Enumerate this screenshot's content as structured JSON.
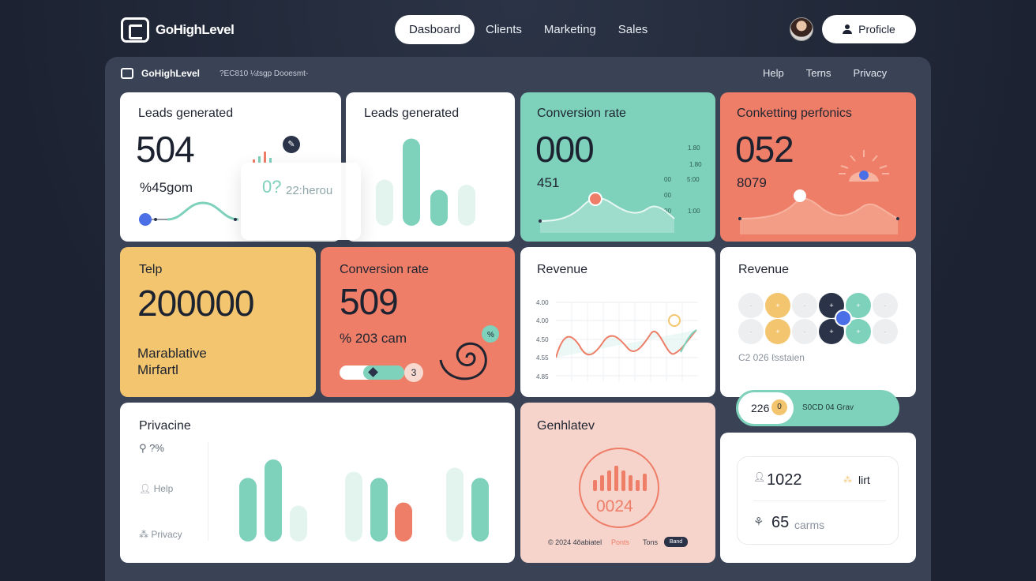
{
  "brand": {
    "name": "GoHighLevel"
  },
  "nav": {
    "items": [
      {
        "label": "Dasboard",
        "active": true
      },
      {
        "label": "Clients"
      },
      {
        "label": "Marketing"
      },
      {
        "label": "Sales"
      }
    ],
    "profile_label": "Proficle"
  },
  "subbar": {
    "brand": "GoHighLevel",
    "text": "?EC810 ¼tsgp Dooesmt-",
    "links": [
      "Help",
      "Terns",
      "Privacy"
    ]
  },
  "cards": {
    "leads1": {
      "title": "Leads generated",
      "value": "504",
      "sub": "%45gom"
    },
    "popup": {
      "text": "22:herou",
      "num": "0?"
    },
    "leads2": {
      "title": "Leads generated",
      "bar_levels": [
        0.45,
        0.85,
        0.35,
        0.4
      ]
    },
    "conv1": {
      "title": "Conversion rate",
      "value": "000",
      "sub": "451",
      "ticks": [
        "1.80",
        "1.80",
        "00",
        "00",
        "5:00",
        "00",
        "1:00"
      ]
    },
    "market": {
      "title": "Conketting perfonics",
      "value": "052",
      "sub": "8079"
    },
    "help": {
      "title": "Telp",
      "value": "200000",
      "line1": "Marablative",
      "line2": "Mirfartl"
    },
    "conv2": {
      "title": "Conversion rate",
      "value": "509",
      "sub": "% 203 cam",
      "slider_badge": "3"
    },
    "rev1": {
      "title": "Revenue",
      "ticks": [
        "4.00",
        "4.00",
        "4.50",
        "4.55",
        "4.85"
      ]
    },
    "rev2": {
      "title": "Revenue",
      "caption": "C2 026  ℓsstaien"
    },
    "pill": {
      "left": "226",
      "badge": "0",
      "right": "S0CD 04 Grav"
    },
    "stats": {
      "row1_num": "1022",
      "row1_label": "lirt",
      "row2_num": "65",
      "row2_label": "carms"
    },
    "privacy": {
      "title": "Privacine",
      "items": [
        "?%",
        "Help",
        "Privacy"
      ],
      "bar_levels": [
        0.62,
        0.8,
        0.35,
        0.68,
        0.62,
        0.38,
        0.72,
        0.62
      ]
    },
    "genh": {
      "title": "Genhlatev",
      "value": "0024",
      "footer_left": "© 2024 4ŏabiatel",
      "footer_mid": "Ponts",
      "footer_mid2": "Tons",
      "footer_btn": "Band"
    }
  },
  "colors": {
    "teal": "#7ed1bb",
    "coral": "#ee7e68",
    "yellow": "#f2c56e",
    "navy": "#2a3348",
    "pink": "#f6d3cb"
  }
}
